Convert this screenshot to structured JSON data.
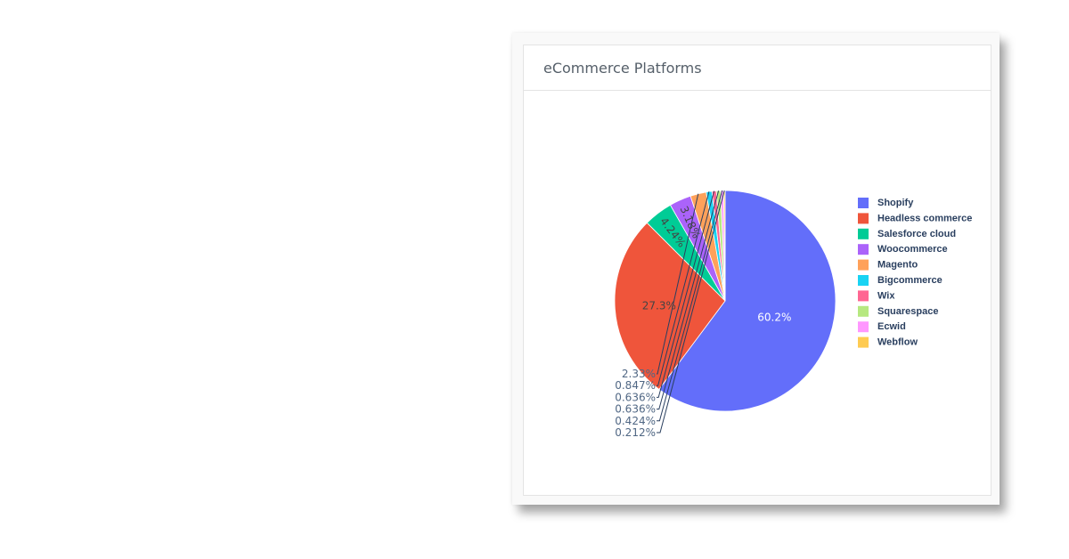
{
  "card": {
    "title": "eCommerce Platforms"
  },
  "chart_data": {
    "type": "pie",
    "title": "eCommerce Platforms",
    "direction": "clockwise",
    "start_angle_deg": 90,
    "legend_position": "right",
    "slices": [
      {
        "label": "Shopify",
        "percent": 60.2,
        "display": "60.2%",
        "color": "#636efa",
        "text_color": "#ffffff",
        "inside": true
      },
      {
        "label": "Headless commerce",
        "percent": 27.3,
        "display": "27.3%",
        "color": "#ef553b",
        "text_color": "#444444",
        "inside": true
      },
      {
        "label": "Salesforce cloud",
        "percent": 4.24,
        "display": "4.24%",
        "color": "#00cc96",
        "text_color": "#444444",
        "inside": true
      },
      {
        "label": "Woocommerce",
        "percent": 3.18,
        "display": "3.18%",
        "color": "#ab63fa",
        "text_color": "#444444",
        "inside": true
      },
      {
        "label": "Magento",
        "percent": 2.33,
        "display": "2.33%",
        "color": "#ffa15a",
        "text_color": "#506784",
        "inside": false
      },
      {
        "label": "Bigcommerce",
        "percent": 0.847,
        "display": "0.847%",
        "color": "#19d3f3",
        "text_color": "#506784",
        "inside": false
      },
      {
        "label": "Wix",
        "percent": 0.636,
        "display": "0.636%",
        "color": "#ff6692",
        "text_color": "#506784",
        "inside": false
      },
      {
        "label": "Squarespace",
        "percent": 0.636,
        "display": "0.636%",
        "color": "#b6e880",
        "text_color": "#506784",
        "inside": false
      },
      {
        "label": "Ecwid",
        "percent": 0.424,
        "display": "0.424%",
        "color": "#ff97ff",
        "text_color": "#506784",
        "inside": false
      },
      {
        "label": "Webflow",
        "percent": 0.212,
        "display": "0.212%",
        "color": "#fecb52",
        "text_color": "#506784",
        "inside": false
      }
    ]
  }
}
